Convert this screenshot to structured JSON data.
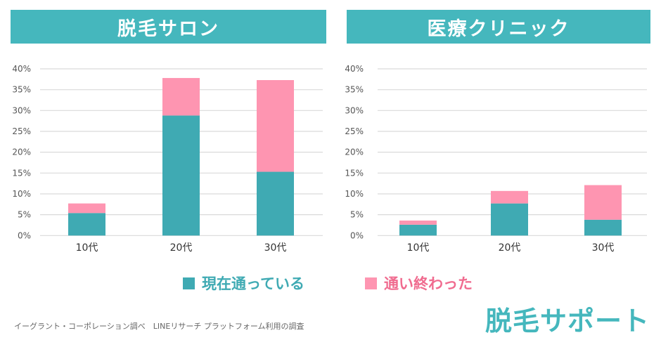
{
  "colors": {
    "current": "#3faab3",
    "finished": "#fe95b1",
    "header": "#45b7bd",
    "finished_text": "#f06b8f"
  },
  "chart_data": [
    {
      "type": "bar",
      "stacked": true,
      "title": "脱毛サロン",
      "categories": [
        "10代",
        "20代",
        "30代"
      ],
      "series": [
        {
          "name": "現在通っている",
          "values": [
            5.4,
            28.8,
            15.3
          ]
        },
        {
          "name": "通い終わった",
          "values": [
            2.3,
            9.0,
            22.0
          ]
        }
      ],
      "yticks": [
        "0%",
        "5%",
        "10%",
        "15%",
        "20%",
        "25%",
        "30%",
        "35%",
        "40%"
      ],
      "ylim": [
        0,
        40
      ],
      "grid": true,
      "legend": "bottom"
    },
    {
      "type": "bar",
      "stacked": true,
      "title": "医療クリニック",
      "categories": [
        "10代",
        "20代",
        "30代"
      ],
      "series": [
        {
          "name": "現在通っている",
          "values": [
            2.6,
            7.7,
            3.8
          ]
        },
        {
          "name": "通い終わった",
          "values": [
            1.0,
            3.0,
            8.3
          ]
        }
      ],
      "yticks": [
        "0%",
        "5%",
        "10%",
        "15%",
        "20%",
        "25%",
        "30%",
        "35%",
        "40%"
      ],
      "ylim": [
        0,
        40
      ],
      "grid": true,
      "legend": "bottom"
    }
  ],
  "legend": {
    "current": "現在通っている",
    "finished": "通い終わった"
  },
  "source": "イーグラント・コーポレーション調べ　LINEリサーチ プラットフォーム利用の調査",
  "logo": "脱毛サポート"
}
